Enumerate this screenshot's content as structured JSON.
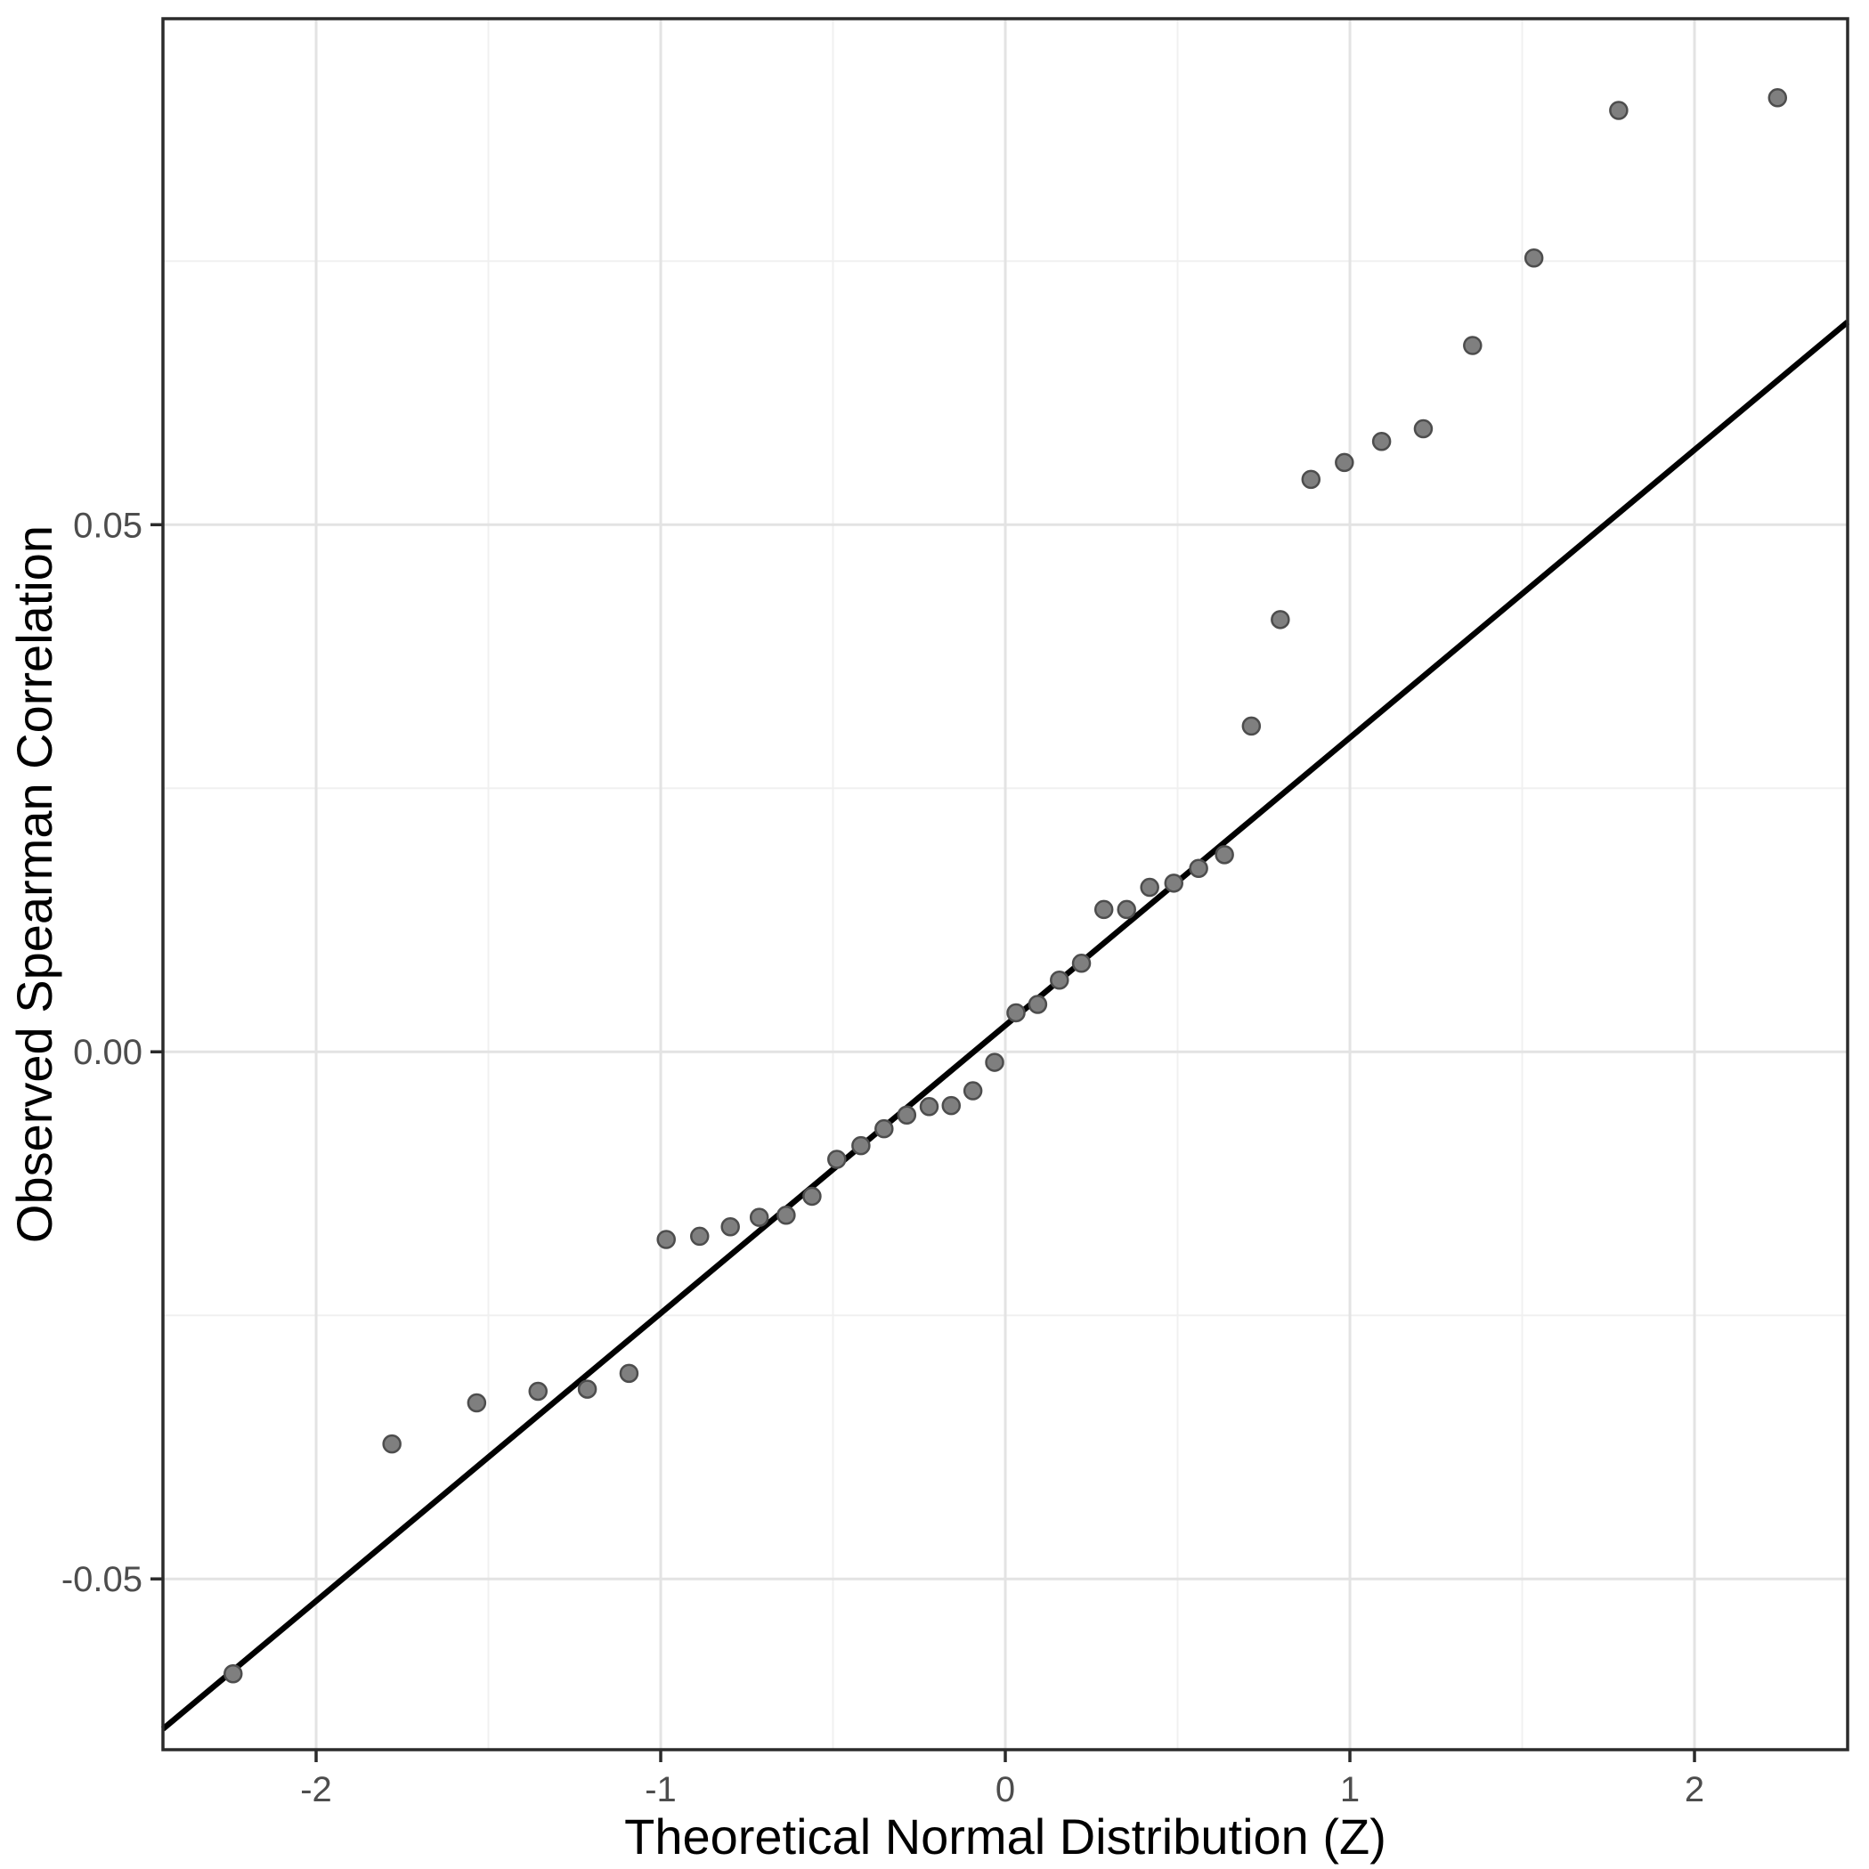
{
  "figure": {
    "background_color": "#ffffff",
    "panel_background": "#ffffff",
    "panel_border_color": "#2b2b2b",
    "grid_major_color": "#e3e3e3",
    "grid_minor_color": "#f0f0f0",
    "tick_label_color": "#4d4d4d",
    "axis_title_color": "#000000"
  },
  "chart_data": {
    "type": "scatter",
    "subtype": "qq-plot",
    "title": "",
    "xlabel": "Theoretical Normal Distribution (Z)",
    "ylabel": "Observed Spearman Correlation",
    "xlim": [
      -2.4445,
      2.4444
    ],
    "ylim": [
      -0.0662,
      0.098
    ],
    "x_ticks": [
      -2,
      -1,
      0,
      1,
      2
    ],
    "x_tick_labels": [
      "-2",
      "-1",
      "0",
      "1",
      "2"
    ],
    "y_ticks": [
      0.05,
      0.0,
      -0.05
    ],
    "y_tick_labels": [
      "0.05",
      "0.00",
      "-0.05"
    ],
    "x_minor_breaks": [
      -1.5,
      -0.5,
      0.5,
      1.5
    ],
    "y_minor_breaks": [
      0.075,
      0.025,
      -0.025
    ],
    "grid": "major+minor",
    "legend": "none",
    "n_points": 40,
    "points": [
      [
        -2.241,
        -0.059
      ],
      [
        -1.78,
        -0.0372
      ],
      [
        -1.534,
        -0.0333
      ],
      [
        -1.356,
        -0.0322
      ],
      [
        -1.213,
        -0.032
      ],
      [
        -1.092,
        -0.0305
      ],
      [
        -0.984,
        -0.0178
      ],
      [
        -0.887,
        -0.0175
      ],
      [
        -0.798,
        -0.0166
      ],
      [
        -0.714,
        -0.0157
      ],
      [
        -0.636,
        -0.0155
      ],
      [
        -0.561,
        -0.0137
      ],
      [
        -0.489,
        -0.0102
      ],
      [
        -0.419,
        -0.0089
      ],
      [
        -0.352,
        -0.0073
      ],
      [
        -0.286,
        -0.006
      ],
      [
        -0.221,
        -0.0052
      ],
      [
        -0.157,
        -0.0051
      ],
      [
        -0.094,
        -0.0037
      ],
      [
        -0.031,
        -0.001
      ],
      [
        0.031,
        0.0037
      ],
      [
        0.094,
        0.0045
      ],
      [
        0.157,
        0.0068
      ],
      [
        0.221,
        0.0084
      ],
      [
        0.286,
        0.0135
      ],
      [
        0.352,
        0.0135
      ],
      [
        0.419,
        0.0156
      ],
      [
        0.489,
        0.016
      ],
      [
        0.561,
        0.0174
      ],
      [
        0.636,
        0.0187
      ],
      [
        0.714,
        0.0309
      ],
      [
        0.798,
        0.041
      ],
      [
        0.887,
        0.0543
      ],
      [
        0.984,
        0.0559
      ],
      [
        1.092,
        0.0579
      ],
      [
        1.213,
        0.0591
      ],
      [
        1.356,
        0.067
      ],
      [
        1.534,
        0.0753
      ],
      [
        1.78,
        0.0893
      ],
      [
        2.241,
        0.0905
      ]
    ],
    "reference_line": {
      "slope": 0.0273,
      "intercept": 0.0025,
      "color": "#000000"
    },
    "point_style": {
      "fill": "#7f7f7f",
      "stroke": "#4d4d4d",
      "radius": 9.5
    }
  }
}
